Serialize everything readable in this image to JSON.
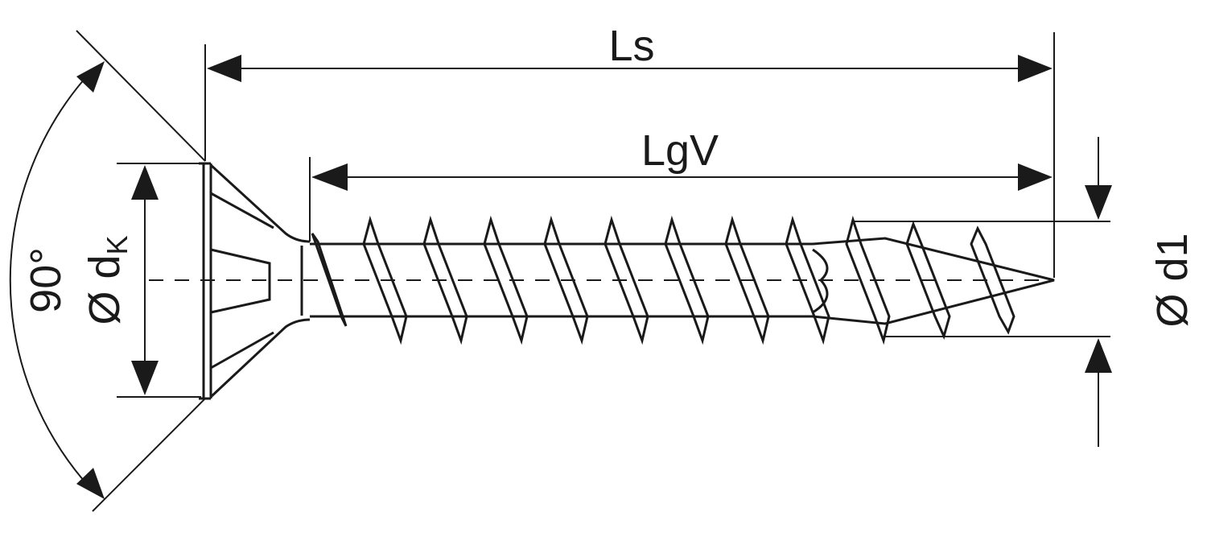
{
  "labels": {
    "total_length": "Ls",
    "thread_length": "LgV",
    "head_angle": "90°",
    "head_diameter_prefix": "Ø d",
    "head_diameter_subscript": "K",
    "thread_diameter": "Ø d1"
  },
  "colors": {
    "line": "#1a1a1a",
    "background": "#ffffff"
  }
}
